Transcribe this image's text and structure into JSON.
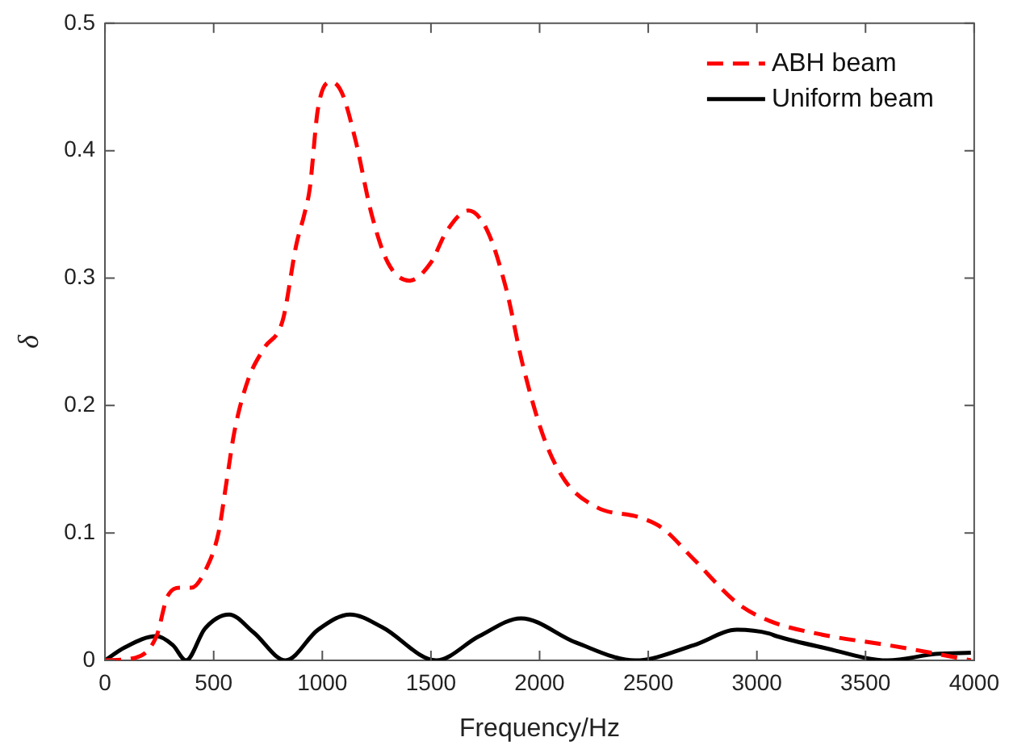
{
  "chart_data": {
    "type": "line",
    "xlabel": "Frequency/Hz",
    "ylabel": "δ",
    "xlim": [
      0,
      4000
    ],
    "xticks": [
      0,
      500,
      1000,
      1500,
      2000,
      2500,
      3000,
      3500,
      4000
    ],
    "ylim": [
      0,
      0.5
    ],
    "yticks": [
      0,
      0.1,
      0.2,
      0.3,
      0.4,
      0.5
    ],
    "grid": false,
    "legend": "top right",
    "marker": "none",
    "series": [
      {
        "name": "ABH beam",
        "color": "#ff0000",
        "line_style": "dashed",
        "x": [
          0,
          139,
          237,
          287,
          349,
          398,
          460,
          522,
          559,
          596,
          658,
          732,
          818,
          880,
          917,
          942,
          980,
          1041,
          1091,
          1153,
          1227,
          1302,
          1401,
          1499,
          1573,
          1672,
          1760,
          1847,
          1921,
          2019,
          2117,
          2265,
          2464,
          2563,
          2711,
          2909,
          3058,
          3305,
          3602,
          3800,
          3985
        ],
        "values": [
          0,
          0.002,
          0.019,
          0.05,
          0.057,
          0.057,
          0.07,
          0.1,
          0.14,
          0.18,
          0.22,
          0.245,
          0.267,
          0.326,
          0.35,
          0.37,
          0.433,
          0.454,
          0.445,
          0.408,
          0.35,
          0.312,
          0.298,
          0.312,
          0.337,
          0.353,
          0.337,
          0.291,
          0.233,
          0.175,
          0.141,
          0.12,
          0.112,
          0.104,
          0.079,
          0.045,
          0.031,
          0.02,
          0.012,
          0.006,
          0
        ]
      },
      {
        "name": "Uniform beam",
        "color": "#000000",
        "line_style": "solid",
        "x": [
          0,
          89,
          237,
          312,
          373,
          460,
          571,
          683,
          831,
          980,
          1128,
          1276,
          1524,
          1722,
          1914,
          2167,
          2439,
          2711,
          2909,
          3058,
          3090,
          3305,
          3602,
          3824,
          3985
        ],
        "values": [
          0,
          0.01,
          0.019,
          0.012,
          0,
          0.025,
          0.036,
          0.022,
          0,
          0.024,
          0.036,
          0.026,
          0,
          0.019,
          0.033,
          0.014,
          0,
          0.012,
          0.024,
          0.021,
          0.019,
          0.01,
          0,
          0.005,
          0.006
        ]
      }
    ]
  }
}
